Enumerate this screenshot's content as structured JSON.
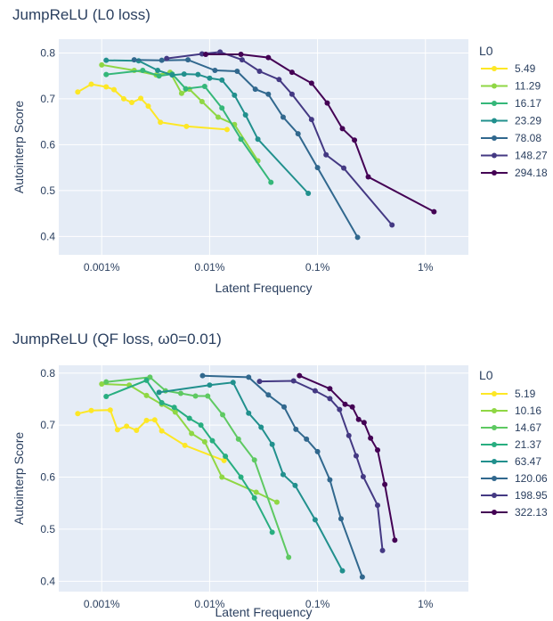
{
  "chart_data": [
    {
      "type": "line",
      "title": "JumpReLU (L0 loss)",
      "xlabel": "Latent Frequency",
      "ylabel": "Autointerp Score",
      "xscale": "log",
      "xlim": [
        0.0004,
        2.5
      ],
      "ylim": [
        0.36,
        0.83
      ],
      "xticks": [
        0.001,
        0.01,
        0.1,
        1
      ],
      "xtick_labels": [
        "0.001%",
        "0.01%",
        "0.1%",
        "1%"
      ],
      "yticks": [
        0.4,
        0.5,
        0.6,
        0.7,
        0.8
      ],
      "ytick_labels": [
        "0.4",
        "0.5",
        "0.6",
        "0.7",
        "0.8"
      ],
      "legend_title": "L0",
      "series": [
        {
          "name": "5.49",
          "color": "#fde725",
          "x": [
            0.0006,
            0.0008,
            0.0011,
            0.0013,
            0.0016,
            0.0019,
            0.0023,
            0.0027,
            0.0035,
            0.0061,
            0.0145
          ],
          "y": [
            0.715,
            0.732,
            0.726,
            0.72,
            0.7,
            0.692,
            0.701,
            0.684,
            0.649,
            0.64,
            0.633
          ]
        },
        {
          "name": "11.29",
          "color": "#8fd744",
          "x": [
            0.001,
            0.002,
            0.0032,
            0.0043,
            0.0055,
            0.0065,
            0.0085,
            0.012,
            0.017,
            0.028
          ],
          "y": [
            0.774,
            0.762,
            0.752,
            0.758,
            0.712,
            0.721,
            0.694,
            0.66,
            0.644,
            0.565
          ]
        },
        {
          "name": "16.17",
          "color": "#35b779",
          "x": [
            0.0011,
            0.0024,
            0.0034,
            0.0045,
            0.006,
            0.009,
            0.013,
            0.0195,
            0.037
          ],
          "y": [
            0.753,
            0.762,
            0.75,
            0.754,
            0.722,
            0.727,
            0.68,
            0.612,
            0.518
          ]
        },
        {
          "name": "23.29",
          "color": "#21908d",
          "x": [
            0.0011,
            0.0022,
            0.0033,
            0.0045,
            0.0058,
            0.0078,
            0.01,
            0.013,
            0.017,
            0.0215,
            0.028,
            0.082
          ],
          "y": [
            0.784,
            0.783,
            0.762,
            0.752,
            0.754,
            0.753,
            0.745,
            0.741,
            0.708,
            0.665,
            0.612,
            0.494
          ]
        },
        {
          "name": "78.08",
          "color": "#31688e",
          "x": [
            0.002,
            0.0036,
            0.0063,
            0.0112,
            0.018,
            0.0265,
            0.035,
            0.048,
            0.066,
            0.1,
            0.235
          ],
          "y": [
            0.785,
            0.784,
            0.785,
            0.762,
            0.76,
            0.721,
            0.71,
            0.66,
            0.624,
            0.55,
            0.398
          ]
        },
        {
          "name": "148.27",
          "color": "#443983",
          "x": [
            0.004,
            0.0085,
            0.0125,
            0.02,
            0.029,
            0.044,
            0.058,
            0.088,
            0.12,
            0.175,
            0.49
          ],
          "y": [
            0.788,
            0.798,
            0.802,
            0.785,
            0.76,
            0.742,
            0.71,
            0.655,
            0.578,
            0.549,
            0.425
          ]
        },
        {
          "name": "294.18",
          "color": "#440154",
          "x": [
            0.0092,
            0.0195,
            0.035,
            0.058,
            0.088,
            0.123,
            0.17,
            0.22,
            0.295,
            1.2
          ],
          "y": [
            0.797,
            0.797,
            0.79,
            0.758,
            0.734,
            0.691,
            0.635,
            0.61,
            0.53,
            0.454
          ]
        }
      ]
    },
    {
      "type": "line",
      "title": "JumpReLU (QF loss, ω0=0.01)",
      "xlabel": "Latent Frequency",
      "ylabel": "Autointerp Score",
      "xscale": "log",
      "xlim": [
        0.0004,
        2.5
      ],
      "ylim": [
        0.38,
        0.815
      ],
      "xticks": [
        0.001,
        0.01,
        0.1,
        1
      ],
      "xtick_labels": [
        "0.001%",
        "0.01%",
        "0.1%",
        "1%"
      ],
      "yticks": [
        0.4,
        0.5,
        0.6,
        0.7,
        0.8
      ],
      "ytick_labels": [
        "0.4",
        "0.5",
        "0.6",
        "0.7",
        "0.8"
      ],
      "legend_title": "L0",
      "series": [
        {
          "name": "5.19",
          "color": "#fde725",
          "x": [
            0.0006,
            0.0008,
            0.0012,
            0.0014,
            0.0017,
            0.0021,
            0.0026,
            0.0031,
            0.0036,
            0.0059,
            0.0136
          ],
          "y": [
            0.722,
            0.728,
            0.729,
            0.691,
            0.698,
            0.69,
            0.709,
            0.71,
            0.689,
            0.661,
            0.632
          ]
        },
        {
          "name": "10.16",
          "color": "#8fd744",
          "x": [
            0.001,
            0.0018,
            0.0026,
            0.0036,
            0.0048,
            0.0068,
            0.009,
            0.013,
            0.027,
            0.042
          ],
          "y": [
            0.779,
            0.777,
            0.757,
            0.74,
            0.725,
            0.684,
            0.668,
            0.6,
            0.571,
            0.552
          ]
        },
        {
          "name": "14.67",
          "color": "#5ec962",
          "x": [
            0.0011,
            0.0028,
            0.0039,
            0.0054,
            0.0074,
            0.0096,
            0.0132,
            0.0185,
            0.026,
            0.054
          ],
          "y": [
            0.783,
            0.792,
            0.766,
            0.761,
            0.756,
            0.756,
            0.72,
            0.673,
            0.633,
            0.446
          ]
        },
        {
          "name": "21.37",
          "color": "#28ae80",
          "x": [
            0.0011,
            0.0026,
            0.0036,
            0.0047,
            0.0065,
            0.0083,
            0.0106,
            0.014,
            0.0195,
            0.026,
            0.038
          ],
          "y": [
            0.755,
            0.786,
            0.743,
            0.734,
            0.713,
            0.7,
            0.67,
            0.64,
            0.6,
            0.56,
            0.494
          ]
        },
        {
          "name": "63.47",
          "color": "#21908d",
          "x": [
            0.0034,
            0.01,
            0.0165,
            0.023,
            0.03,
            0.038,
            0.048,
            0.062,
            0.095,
            0.17
          ],
          "y": [
            0.763,
            0.777,
            0.782,
            0.723,
            0.696,
            0.663,
            0.605,
            0.584,
            0.518,
            0.42
          ]
        },
        {
          "name": "120.06",
          "color": "#31688e",
          "x": [
            0.0086,
            0.023,
            0.035,
            0.049,
            0.063,
            0.079,
            0.1,
            0.13,
            0.165,
            0.26
          ],
          "y": [
            0.795,
            0.792,
            0.758,
            0.735,
            0.692,
            0.673,
            0.649,
            0.595,
            0.52,
            0.408
          ]
        },
        {
          "name": "198.95",
          "color": "#443983",
          "x": [
            0.029,
            0.06,
            0.095,
            0.13,
            0.16,
            0.195,
            0.228,
            0.265,
            0.36,
            0.4
          ],
          "y": [
            0.784,
            0.785,
            0.766,
            0.751,
            0.73,
            0.68,
            0.641,
            0.601,
            0.546,
            0.459
          ]
        },
        {
          "name": "322.13",
          "color": "#440154",
          "x": [
            0.068,
            0.13,
            0.18,
            0.21,
            0.24,
            0.27,
            0.31,
            0.36,
            0.42,
            0.52
          ],
          "y": [
            0.795,
            0.77,
            0.74,
            0.735,
            0.711,
            0.705,
            0.675,
            0.652,
            0.586,
            0.479
          ]
        }
      ]
    }
  ]
}
